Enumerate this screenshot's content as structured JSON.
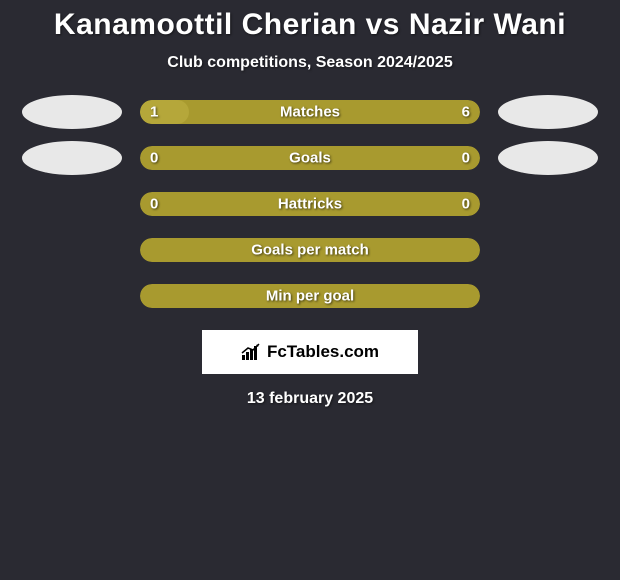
{
  "title": "Kanamoottil Cherian vs Nazir Wani",
  "subtitle": "Club competitions, Season 2024/2025",
  "colors": {
    "background": "#2a2a32",
    "bar_accent": "#a89a2f",
    "bar_accent_light": "#b5a73a",
    "text": "#ffffff",
    "logo_bg": "#ffffff",
    "logo_text": "#000000",
    "avatar": "#e8e8e8"
  },
  "bars": [
    {
      "label": "Matches",
      "left_val": "1",
      "right_val": "6",
      "left_pct": 14.3,
      "fill_color": "#b5a73a",
      "bg_color": "#a89a2f",
      "show_avatars": true
    },
    {
      "label": "Goals",
      "left_val": "0",
      "right_val": "0",
      "left_pct": 0,
      "fill_color": "#a89a2f",
      "bg_color": "#a89a2f",
      "show_avatars": true
    },
    {
      "label": "Hattricks",
      "left_val": "0",
      "right_val": "0",
      "left_pct": 0,
      "fill_color": "#a89a2f",
      "bg_color": "#a89a2f",
      "show_avatars": false
    },
    {
      "label": "Goals per match",
      "left_val": "",
      "right_val": "",
      "left_pct": 0,
      "fill_color": "#a89a2f",
      "bg_color": "#a89a2f",
      "show_avatars": false
    },
    {
      "label": "Min per goal",
      "left_val": "",
      "right_val": "",
      "left_pct": 0,
      "fill_color": "#a89a2f",
      "bg_color": "#a89a2f",
      "show_avatars": false
    }
  ],
  "logo_text": "FcTables.com",
  "date": "13 february 2025"
}
